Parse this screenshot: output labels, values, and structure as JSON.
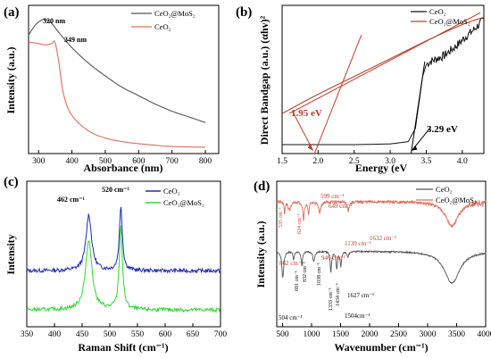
{
  "chart_data": [
    {
      "panel": "(a)",
      "type": "line",
      "xlabel": "Absorbance (nm)",
      "ylabel": "Intensity (a.u.)",
      "xlim": [
        270,
        840
      ],
      "xticks": [
        300,
        400,
        500,
        600,
        700,
        800
      ],
      "legend_position": "top-right",
      "series": [
        {
          "name": "CeO₂@MoS₂",
          "color": "#555555",
          "x": [
            270,
            290,
            305,
            320,
            340,
            360,
            400,
            450,
            500,
            550,
            600,
            650,
            700,
            750,
            800
          ],
          "y": [
            0.84,
            0.91,
            0.94,
            0.95,
            0.92,
            0.86,
            0.75,
            0.64,
            0.55,
            0.47,
            0.41,
            0.35,
            0.3,
            0.26,
            0.22
          ]
        },
        {
          "name": "CeO₂",
          "color": "#d9705b",
          "x": [
            270,
            300,
            320,
            340,
            349,
            360,
            375,
            400,
            450,
            500,
            550,
            600,
            700,
            800
          ],
          "y": [
            0.79,
            0.78,
            0.77,
            0.78,
            0.79,
            0.66,
            0.42,
            0.27,
            0.16,
            0.11,
            0.085,
            0.07,
            0.05,
            0.045
          ]
        }
      ],
      "annotations": [
        {
          "text": "320 nm",
          "x": 320
        },
        {
          "text": "349 nm",
          "x": 349
        }
      ]
    },
    {
      "panel": "(b)",
      "type": "line",
      "xlabel": "Energy (eV",
      "ylabel": "Direct Bandgap (a.u.) (αhv)²",
      "xlim": [
        1.5,
        4.3
      ],
      "xticks": [
        1.5,
        2.0,
        2.5,
        3.0,
        3.5,
        4.0
      ],
      "legend_position": "top-right",
      "series": [
        {
          "name": "CeO₂",
          "color": "#111111",
          "x": [
            1.5,
            2.5,
            3.0,
            3.25,
            3.35,
            3.45,
            3.5,
            3.55,
            3.65,
            3.75,
            3.85,
            3.95,
            4.05,
            4.15,
            4.25,
            4.3
          ],
          "y": [
            0.06,
            0.06,
            0.065,
            0.08,
            0.17,
            0.52,
            0.6,
            0.62,
            0.64,
            0.66,
            0.7,
            0.74,
            0.79,
            0.83,
            0.88,
            0.9
          ]
        },
        {
          "name": "CeO₂@MoS₂",
          "color": "#b5452e",
          "x": [
            1.5,
            2.0,
            2.5,
            3.0,
            3.5,
            4.0,
            4.3
          ],
          "y": [
            0.27,
            0.4,
            0.52,
            0.64,
            0.76,
            0.87,
            0.92
          ]
        }
      ],
      "annotations": [
        {
          "text": "1.95 eV",
          "x": 1.95
        },
        {
          "text": "3.29 eV",
          "x": 3.29
        }
      ]
    },
    {
      "panel": "(c)",
      "type": "line",
      "xlabel": "Raman Shift (cm⁻¹)",
      "ylabel": "Intensity",
      "xlim": [
        350,
        700
      ],
      "xticks": [
        350,
        400,
        450,
        500,
        550,
        600,
        650,
        700
      ],
      "legend_position": "top-right",
      "series": [
        {
          "name": "CeO₂",
          "color": "#1f2db5",
          "peaks": [
            {
              "x": 462,
              "height": 0.5,
              "width": 6
            },
            {
              "x": 520,
              "height": 0.58,
              "width": 3.2
            }
          ],
          "baseline": 0.5
        },
        {
          "name": "CeO₂@MoS₂",
          "color": "#33d633",
          "peaks": [
            {
              "x": 462,
              "height": 0.62,
              "width": 7
            },
            {
              "x": 520,
              "height": 0.75,
              "width": 3.4
            }
          ],
          "baseline": 0.15
        }
      ],
      "annotations": [
        {
          "text": "462 cm⁻¹",
          "x": 462
        },
        {
          "text": "520 cm⁻¹",
          "x": 520
        }
      ]
    },
    {
      "panel": "(d)",
      "type": "line",
      "xlabel": "Wavenumber (cm⁻¹)",
      "ylabel": "Intensity (a.u.)",
      "xlim": [
        400,
        4000
      ],
      "xticks": [
        500,
        1000,
        1500,
        2000,
        2500,
        3000,
        3500,
        4000
      ],
      "legend_position": "top-right",
      "series": [
        {
          "name": "CeO₂",
          "color": "#555555"
        },
        {
          "name": "CeO₂@MoS₂",
          "color": "#d9705b"
        }
      ],
      "annotations": {
        "red": [
          "599 cm⁻¹",
          "649 cm⁻¹",
          "535 cm⁻¹",
          "624 cm⁻¹",
          "862 cm⁻¹",
          "946 cm⁻¹",
          "1139 cm⁻¹",
          "1632 cm⁻¹"
        ],
        "black": [
          "504 cm⁻¹",
          "691 cm⁻¹",
          "832 cm⁻¹",
          "1038 cm⁻¹",
          "1333 cm⁻¹",
          "1434 cm⁻¹",
          "1627 cm⁻¹",
          "1504cm⁻¹"
        ]
      }
    }
  ]
}
